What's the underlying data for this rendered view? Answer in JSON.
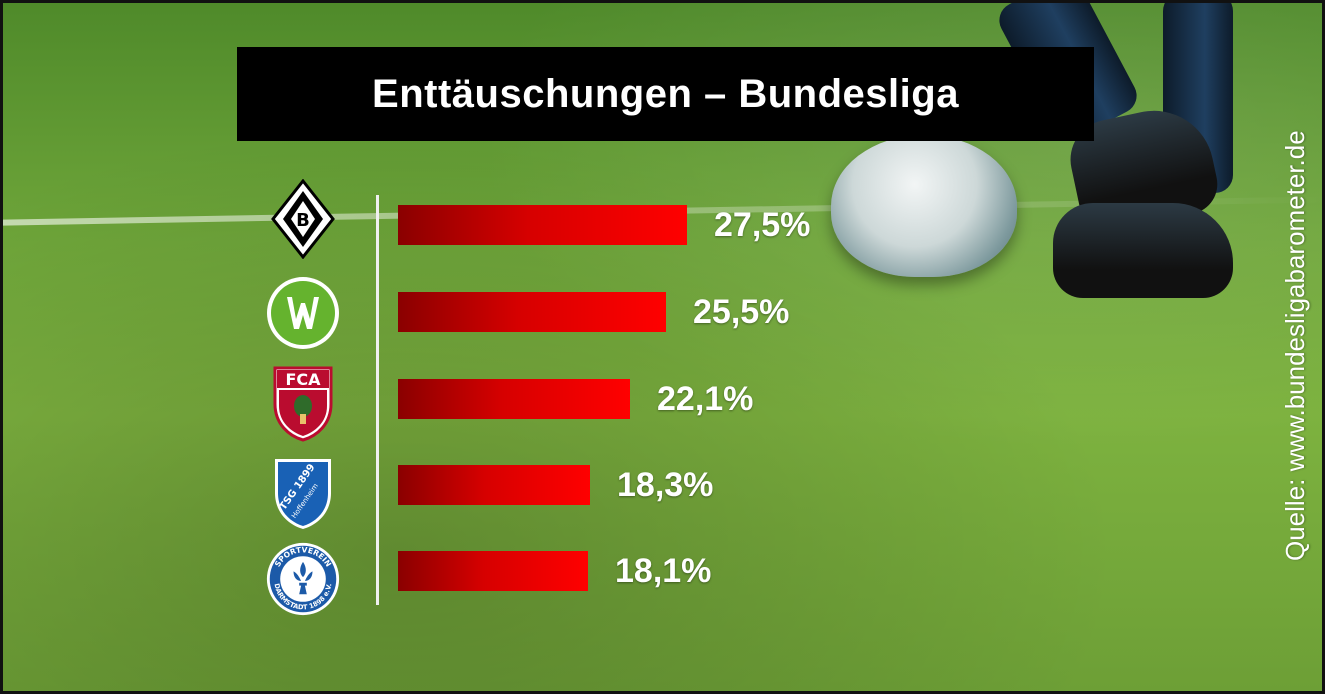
{
  "chart_data": {
    "type": "bar",
    "orientation": "horizontal",
    "title": "Enttäuschungen – Bundesliga",
    "categories": [
      "Borussia Mönchengladbach",
      "VfL Wolfsburg",
      "FC Augsburg",
      "TSG 1899 Hoffenheim",
      "SV Darmstadt 98"
    ],
    "values": [
      27.5,
      25.5,
      22.1,
      18.3,
      18.1
    ],
    "value_labels": [
      "27,5%",
      "25,5%",
      "22,1%",
      "18,3%",
      "18,1%"
    ],
    "xlim": [
      0,
      27.5
    ],
    "grid": false,
    "legend": "none",
    "bar_color": "#ff0000",
    "source": "Quelle: www.bundesligabarometer.de"
  },
  "logos": {
    "fca_text": "FCA",
    "tsg_text": "TSG 1899",
    "hoffenheim_text": "Hoffenheim",
    "darmstadt_ring_top": "SPORTVEREIN",
    "darmstadt_ring_bottom": "DARMSTADT 1898 e.V."
  }
}
